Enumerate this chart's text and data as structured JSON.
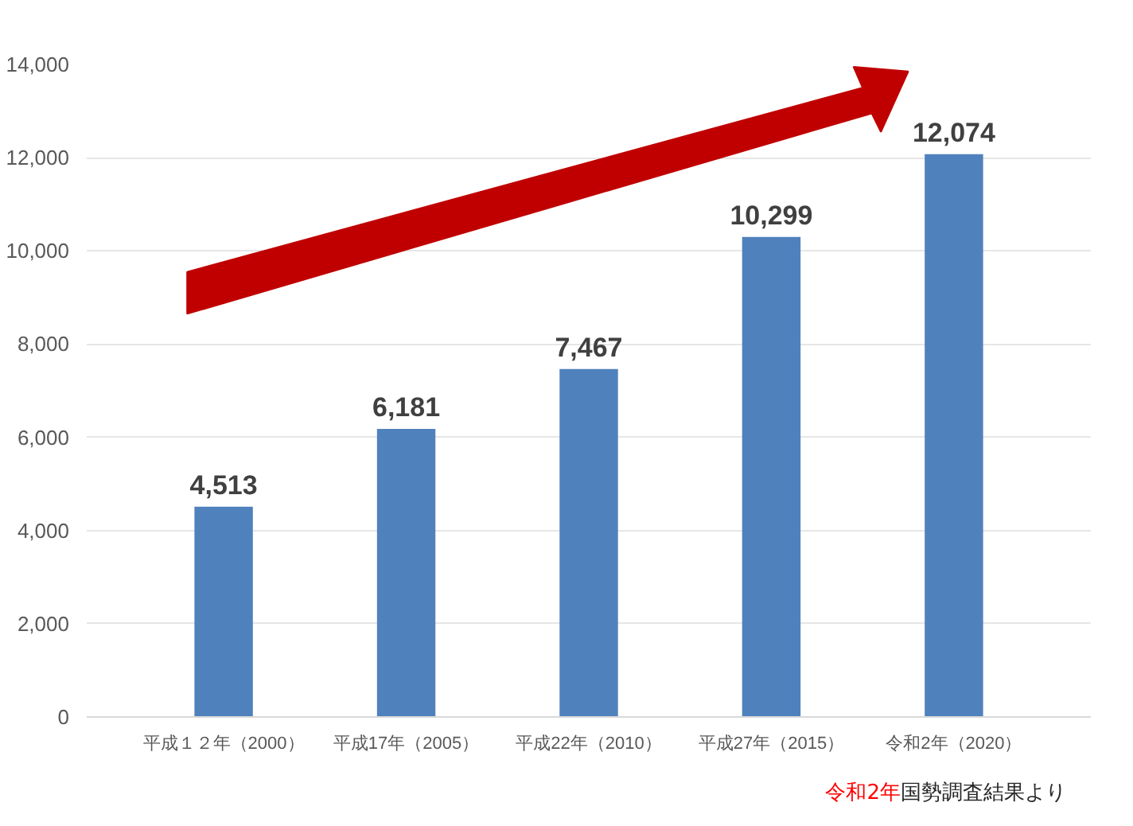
{
  "chart_data": {
    "type": "bar",
    "categories": [
      "平成１２年（2000）",
      "平成17年（2005）",
      "平成22年（2010）",
      "平成27年（2015）",
      "令和2年（2020）"
    ],
    "values": [
      4513,
      6181,
      7467,
      10299,
      12074
    ],
    "color": "#4f81bd",
    "ylim": [
      0,
      14000
    ],
    "yticks": [
      {
        "value": 0,
        "label": "0"
      },
      {
        "value": 2000,
        "label": "2,000"
      },
      {
        "value": 4000,
        "label": "4,000"
      },
      {
        "value": 6000,
        "label": "6,000"
      },
      {
        "value": 8000,
        "label": "8,000"
      },
      {
        "value": 10000,
        "label": "10,000"
      },
      {
        "value": 12000,
        "label": "12,000"
      },
      {
        "value": 14000,
        "label": "14,000"
      }
    ],
    "grid": "y",
    "value_labels": [
      "4,513",
      "6,181",
      "7,467",
      "10,299",
      "12,074"
    ],
    "annotations": [
      "令和2年",
      "国勢調査結果より"
    ]
  }
}
